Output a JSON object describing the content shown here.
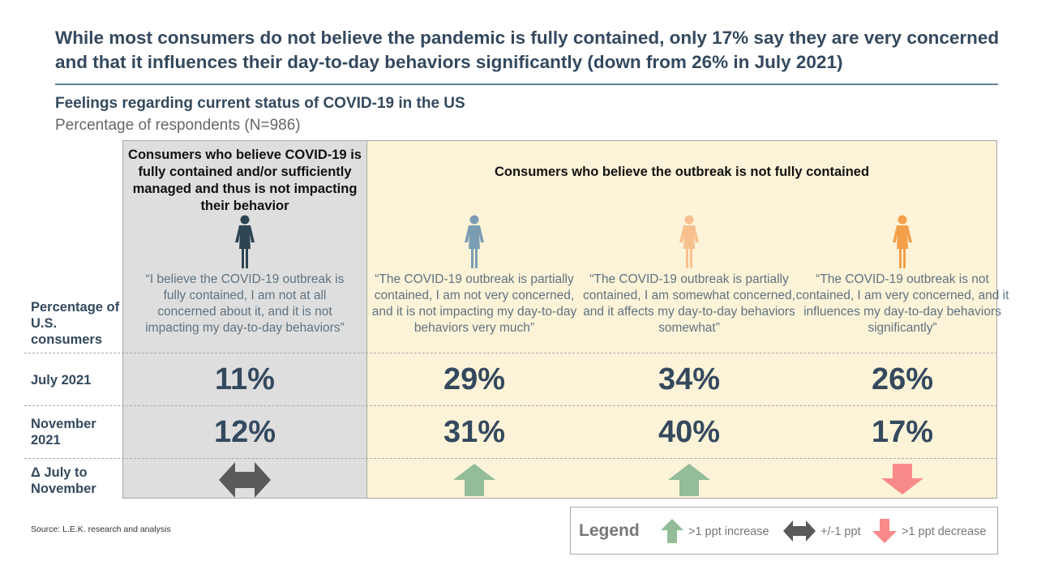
{
  "title": "While most consumers do not believe the pandemic is fully contained, only 17% say they are very concerned and that it influences their day-to-day behaviors significantly (down from 26% in July 2021)",
  "subtitle": "Feelings regarding current status of COVID-19 in the US",
  "subtitle2": "Percentage of respondents (N=986)",
  "groups": {
    "contained": "Consumers who believe COVID-19 is fully contained and/or sufficiently managed and thus is not impacting their behavior",
    "not_contained": "Consumers who believe the outbreak is not fully contained"
  },
  "row_labels": {
    "header": "Percentage of U.S. consumers",
    "july": "July 2021",
    "november": "November 2021",
    "delta": "Δ July to November"
  },
  "columns": [
    {
      "quote": "“I believe the COVID-19 outbreak is fully contained, I am not at all concerned about it, and it is not impacting my day-to-day behaviors”",
      "july": "11%",
      "november": "12%",
      "change": "flat",
      "figure_color": "#2d4552"
    },
    {
      "quote": "“The COVID-19 outbreak is partially contained, I am not very concerned, and it is not impacting my day-to-day behaviors very much”",
      "july": "29%",
      "november": "31%",
      "change": "increase",
      "figure_color": "#7b9db3"
    },
    {
      "quote": "“The COVID-19 outbreak is partially contained, I am somewhat concerned, and it affects my day-to-day behaviors somewhat”",
      "july": "34%",
      "november": "40%",
      "change": "increase",
      "figure_color": "#f8c08f"
    },
    {
      "quote": "“The COVID-19 outbreak is not contained, I am very concerned, and it influences my day-to-day behaviors significantly”",
      "july": "26%",
      "november": "17%",
      "change": "decrease",
      "figure_color": "#f4a04a"
    }
  ],
  "legend": {
    "title": "Legend",
    "increase": ">1 ppt increase",
    "flat": "+/-1 ppt",
    "decrease": ">1 ppt decrease"
  },
  "colors": {
    "increase": "#93bd98",
    "flat": "#5a5a5a",
    "decrease": "#f98a8a",
    "gray_panel": "#dedede",
    "yellow_panel": "#fdf3d8"
  },
  "source": "Source: L.E.K. research and analysis"
}
